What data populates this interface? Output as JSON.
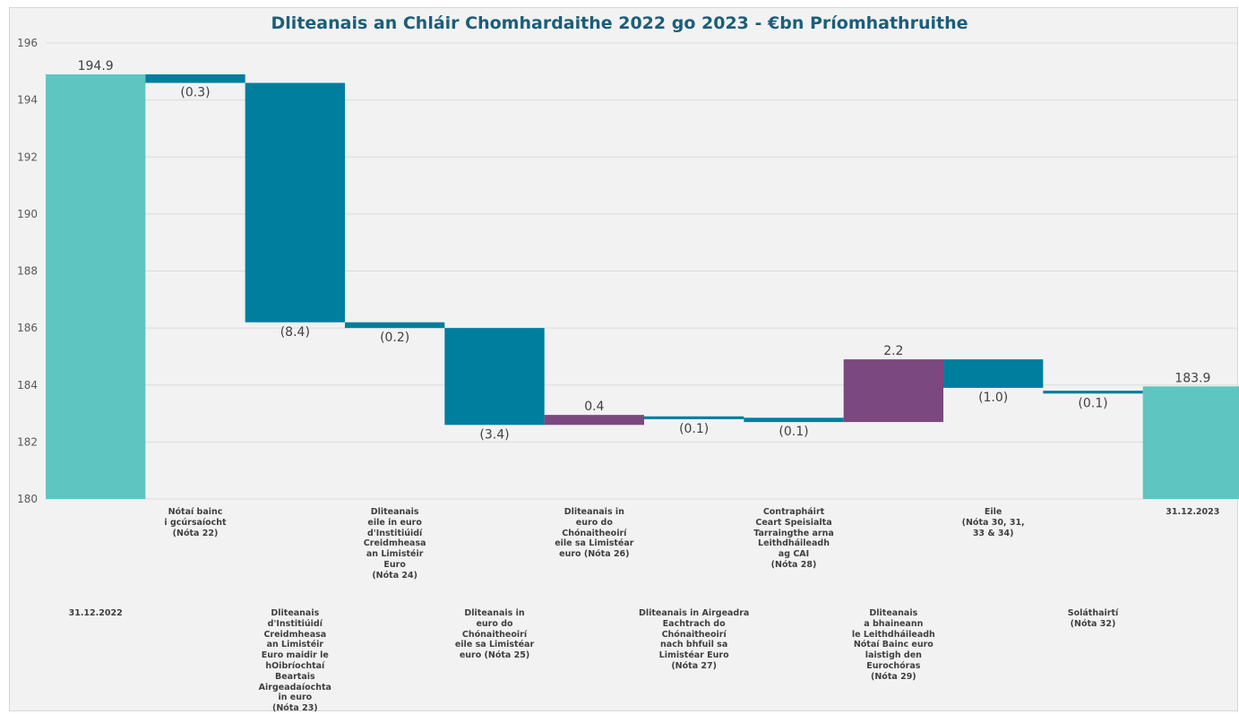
{
  "chart_data": {
    "type": "bar",
    "title": "Dliteanais an Chláir Chomhardaithe 2022 go 2023 - €bn Príomhathruithe",
    "ylim": [
      180,
      196
    ],
    "yticks": [
      "180",
      "182",
      "184",
      "186",
      "188",
      "190",
      "192",
      "194",
      "196"
    ],
    "grid": true,
    "legend": "none",
    "categories": [
      "31.12.2022",
      "Nótaí bainc\ni gcúrsaíocht\n(Nóta 22)",
      "Dliteanais\nd'Institiúidí\nCreidmheasa\nan Limistéir\nEuro maidir le\nhOibríochtaí\nBeartais\nAirgeadaíochta\nin euro\n(Nóta 23)",
      "Dliteanais\neile in euro\nd'Institiúidí\nCreidmheasa\nan Limistéir\nEuro\n(Nóta 24)",
      "Dliteanais in\neuro do\nChónaitheoirí\neile sa Limistéar\neuro (Nóta 25)",
      "Dliteanais in\neuro do\nChónaitheoirí\neile sa Limistéar\neuro (Nóta 26)",
      "Dliteanais in Airgeadra\nEachtrach do Chónaitheoirí\nnach bhfuil sa Limistéar Euro\n(Nóta 27)",
      "Contrapháirt\nCeart Speisialta\nTarraingthe arna\nLeithdháileadh\nag CAI\n(Nóta 28)",
      "Dliteanais\na bhaineann\nle Leithdháileadh\nNótaí Bainc euro\nlaistigh den\nEurochóras\n(Nóta 29)",
      "Eile\n(Nóta 30, 31,\n33 & 34)",
      "Soláthairtí\n(Nóta 32)",
      "31.12.2023"
    ],
    "values": [
      194.9,
      -0.3,
      -8.4,
      -0.2,
      -3.4,
      0.4,
      -0.1,
      -0.1,
      2.2,
      -1.0,
      -0.1,
      183.9
    ],
    "kinds": [
      "total",
      "delta",
      "delta",
      "delta",
      "delta",
      "delta",
      "delta",
      "delta",
      "delta",
      "delta",
      "delta",
      "total"
    ],
    "bar_bottoms": [
      180,
      194.6,
      186.2,
      186.0,
      182.6,
      182.6,
      182.8,
      182.7,
      182.7,
      183.9,
      183.7,
      180
    ],
    "bar_tops": [
      194.9,
      194.9,
      194.6,
      186.2,
      186.0,
      182.95,
      182.9,
      182.85,
      184.9,
      184.9,
      183.8,
      183.95
    ],
    "data_labels": [
      "194.9",
      "(0.3)",
      "(8.4)",
      "(0.2)",
      "(3.4)",
      "0.4",
      "(0.1)",
      "(0.1)",
      "2.2",
      "(1.0)",
      "(0.1)",
      "183.9"
    ],
    "colors": {
      "total": "#5fc5c0",
      "decrease": "#007e9e",
      "increase": "#7b4880",
      "grid": "#dcdcdc",
      "title": "#1b5e7a"
    }
  }
}
